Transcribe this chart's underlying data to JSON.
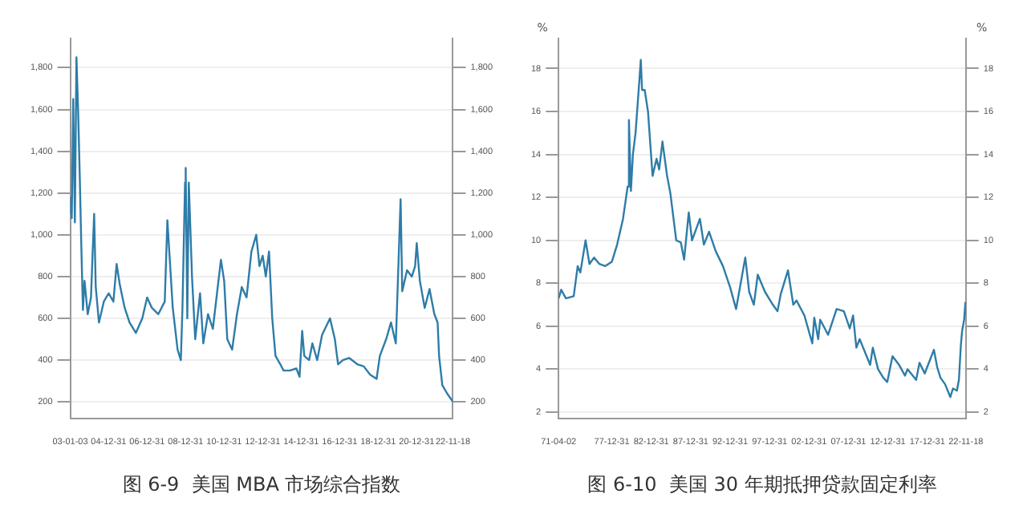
{
  "chart_data": [
    {
      "type": "line",
      "title": "图 6-9  美国 MBA 市场综合指数",
      "grid": "y",
      "marker": "none",
      "line_style": "solid",
      "xlim": [
        "2003-01-03",
        "2022-11-18"
      ],
      "xticks": [
        {
          "value": "2003-01-03",
          "label": "03-01-03"
        },
        {
          "value": "2004-12-31",
          "label": "04-12-31"
        },
        {
          "value": "2006-12-31",
          "label": "06-12-31"
        },
        {
          "value": "2008-12-31",
          "label": "08-12-31"
        },
        {
          "value": "2010-12-31",
          "label": "10-12-31"
        },
        {
          "value": "2012-12-31",
          "label": "12-12-31"
        },
        {
          "value": "2014-12-31",
          "label": "14-12-31"
        },
        {
          "value": "2016-12-31",
          "label": "16-12-31"
        },
        {
          "value": "2018-12-31",
          "label": "18-12-31"
        },
        {
          "value": "2020-12-31",
          "label": "20-12-31"
        },
        {
          "value": "2022-11-18",
          "label": "22-11-18"
        }
      ],
      "ylim": [
        120,
        1940
      ],
      "yticks": [
        200,
        400,
        600,
        800,
        {
          "value": 1000,
          "label": "1,000"
        },
        {
          "value": 1200,
          "label": "1,200"
        },
        {
          "value": 1400,
          "label": "1,400"
        },
        {
          "value": 1600,
          "label": "1,600"
        },
        {
          "value": 1800,
          "label": "1,800"
        }
      ],
      "y2lim": [
        120,
        1940
      ],
      "y2ticks": [
        200,
        400,
        600,
        800,
        {
          "value": 1000,
          "label": "1,000"
        },
        {
          "value": 1200,
          "label": "1,200"
        },
        {
          "value": 1400,
          "label": "1,400"
        },
        {
          "value": 1600,
          "label": "1,600"
        },
        {
          "value": 1800,
          "label": "1,800"
        }
      ],
      "series": [
        {
          "color": "#2e7ca8",
          "x": [
            "2003-01-03",
            "2003-01-20",
            "2003-02",
            "2003-03",
            "2003-04",
            "2003-05",
            "2003-06",
            "2003-07",
            "2003-08",
            "2003-09",
            "2003-10",
            "2003-12",
            "2004-02",
            "2004-03",
            "2004-04",
            "2004-05",
            "2004-07",
            "2004-10",
            "2005-01",
            "2005-04",
            "2005-06",
            "2005-08",
            "2005-11",
            "2006-02",
            "2006-06",
            "2006-10",
            "2007-01",
            "2007-04",
            "2007-08",
            "2007-12",
            "2008-01-20",
            "2008-03",
            "2008-05",
            "2008-08",
            "2008-10",
            "2008-11",
            "2008-12-20",
            "2009-01",
            "2009-02",
            "2009-03",
            "2009-05",
            "2009-07",
            "2009-10",
            "2009-12",
            "2010-03",
            "2010-06",
            "2010-09",
            "2010-11",
            "2011-01",
            "2011-03",
            "2011-06",
            "2011-09",
            "2011-12",
            "2012-03",
            "2012-06",
            "2012-09",
            "2012-11",
            "2013-01",
            "2013-03",
            "2013-05",
            "2013-07",
            "2013-09",
            "2013-12",
            "2014-02",
            "2014-06",
            "2014-10",
            "2014-12",
            "2015-01-20",
            "2015-03",
            "2015-06",
            "2015-08",
            "2015-11",
            "2016-02",
            "2016-07",
            "2016-10",
            "2016-12",
            "2017-03",
            "2017-07",
            "2017-12",
            "2018-04",
            "2018-08",
            "2018-12",
            "2019-02",
            "2019-06",
            "2019-09",
            "2019-12",
            "2020-03",
            "2020-04",
            "2020-07",
            "2020-10",
            "2020-12",
            "2021-01",
            "2021-03",
            "2021-06",
            "2021-09",
            "2021-12",
            "2022-02",
            "2022-03",
            "2022-05",
            "2022-08",
            "2022-11-18"
          ],
          "values": [
            1100,
            1180,
            1080,
            1650,
            1060,
            1850,
            1600,
            1300,
            950,
            640,
            780,
            620,
            700,
            900,
            1100,
            750,
            580,
            680,
            720,
            680,
            860,
            760,
            650,
            580,
            530,
            600,
            700,
            650,
            620,
            680,
            1070,
            900,
            650,
            450,
            400,
            650,
            1250,
            1320,
            600,
            1250,
            800,
            500,
            720,
            480,
            620,
            550,
            750,
            880,
            780,
            500,
            450,
            620,
            750,
            700,
            920,
            1000,
            850,
            900,
            800,
            920,
            600,
            420,
            380,
            350,
            350,
            360,
            320,
            540,
            420,
            400,
            480,
            400,
            520,
            600,
            500,
            380,
            400,
            410,
            380,
            370,
            330,
            310,
            420,
            500,
            580,
            480,
            1170,
            730,
            830,
            800,
            850,
            960,
            780,
            650,
            740,
            620,
            580,
            420,
            280,
            240,
            200
          ]
        }
      ]
    },
    {
      "type": "line",
      "title": "图 6-10  美国 30 年期抵押贷款固定利率",
      "ylabel": "%",
      "y2label": "%",
      "grid": "y",
      "marker": "none",
      "line_style": "solid",
      "xlim": [
        "1971-04-02",
        "2022-11-18"
      ],
      "xticks": [
        {
          "value": "1971-04-02",
          "label": "71-04-02"
        },
        {
          "value": "1977-12-31",
          "label": "77-12-31"
        },
        {
          "value": "1982-12-31",
          "label": "82-12-31"
        },
        {
          "value": "1987-12-31",
          "label": "87-12-31"
        },
        {
          "value": "1992-12-31",
          "label": "92-12-31"
        },
        {
          "value": "1997-12-31",
          "label": "97-12-31"
        },
        {
          "value": "2002-12-31",
          "label": "02-12-31"
        },
        {
          "value": "2007-12-31",
          "label": "07-12-31"
        },
        {
          "value": "2012-12-31",
          "label": "12-12-31"
        },
        {
          "value": "2017-12-31",
          "label": "17-12-31"
        },
        {
          "value": "2022-11-18",
          "label": "22-11-18"
        }
      ],
      "ylim": [
        1.7,
        19.4
      ],
      "yticks": [
        2,
        4,
        6,
        8,
        10,
        12,
        14,
        16,
        18
      ],
      "y2lim": [
        1.7,
        19.4
      ],
      "y2ticks": [
        2,
        4,
        6,
        8,
        10,
        12,
        14,
        16,
        18
      ],
      "series": [
        {
          "color": "#2e7ca8",
          "x": [
            "1971-04-02",
            "1971-08",
            "1972-03",
            "1973-03",
            "1973-09",
            "1974-01",
            "1974-09",
            "1975-03",
            "1975-10",
            "1976-06",
            "1977-03",
            "1978-01",
            "1978-09",
            "1979-06",
            "1980-01",
            "1980-03",
            "1980-06",
            "1980-09",
            "1981-01",
            "1981-07",
            "1981-09",
            "1981-11",
            "1982-03",
            "1982-08",
            "1983-03",
            "1983-09",
            "1984-01",
            "1984-06",
            "1985-01",
            "1985-06",
            "1986-03",
            "1986-10",
            "1987-03",
            "1987-10",
            "1988-03",
            "1989-03",
            "1989-09",
            "1990-05",
            "1991-03",
            "1992-02",
            "1993-01",
            "1993-10",
            "1994-12",
            "1995-06",
            "1996-01",
            "1996-07",
            "1997-06",
            "1998-06",
            "1999-01",
            "1999-06",
            "2000-05",
            "2001-01",
            "2001-06",
            "2002-06",
            "2003-06",
            "2003-09",
            "2004-03",
            "2004-06",
            "2005-06",
            "2006-07",
            "2007-06",
            "2008-03",
            "2008-08",
            "2009-01",
            "2009-06",
            "2010-10",
            "2011-02",
            "2011-10",
            "2012-06",
            "2012-12",
            "2013-08",
            "2014-06",
            "2015-03",
            "2015-07",
            "2016-08",
            "2017-01",
            "2017-09",
            "2018-11",
            "2019-04",
            "2019-09",
            "2020-04",
            "2020-12",
            "2021-04",
            "2021-10",
            "2022-01",
            "2022-04",
            "2022-06",
            "2022-09",
            "2022-10-27",
            "2022-11-18"
          ],
          "values": [
            7.3,
            7.7,
            7.3,
            7.4,
            8.8,
            8.5,
            10.0,
            8.9,
            9.2,
            8.9,
            8.8,
            9.0,
            9.8,
            11.0,
            12.5,
            15.6,
            12.3,
            14.0,
            15.0,
            17.5,
            18.4,
            17.0,
            17.0,
            16.0,
            13.0,
            13.8,
            13.3,
            14.6,
            13.0,
            12.2,
            10.0,
            9.9,
            9.1,
            11.3,
            10.0,
            11.0,
            9.8,
            10.4,
            9.5,
            8.8,
            7.8,
            6.8,
            9.2,
            7.6,
            7.0,
            8.4,
            7.6,
            7.0,
            6.7,
            7.5,
            8.6,
            7.0,
            7.2,
            6.5,
            5.2,
            6.4,
            5.4,
            6.3,
            5.6,
            6.8,
            6.7,
            5.9,
            6.5,
            5.0,
            5.4,
            4.2,
            5.0,
            4.0,
            3.6,
            3.4,
            4.6,
            4.2,
            3.7,
            4.0,
            3.5,
            4.3,
            3.8,
            4.9,
            4.1,
            3.6,
            3.3,
            2.7,
            3.1,
            3.0,
            3.5,
            5.1,
            5.8,
            6.3,
            7.1,
            6.6
          ]
        }
      ]
    }
  ]
}
